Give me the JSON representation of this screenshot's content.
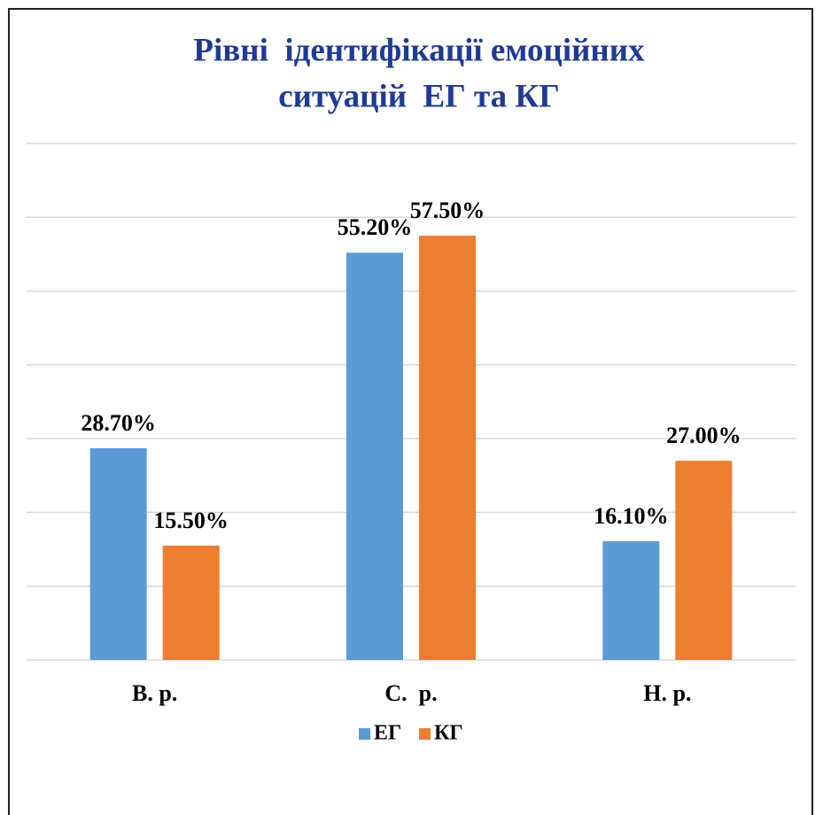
{
  "chart_data": {
    "type": "bar",
    "title": [
      "Рівні  ідентифікації емоційних",
      "ситуацій  ЕГ та КГ"
    ],
    "categories": [
      "В. р.",
      "С.  р.",
      "Н. р."
    ],
    "series": [
      {
        "name": "ЕГ",
        "color": "#5b9bd5",
        "values": [
          28.7,
          55.2,
          16.1
        ],
        "value_labels": [
          "28.70%",
          "55.20%",
          "16.10%"
        ]
      },
      {
        "name": "КГ",
        "color": "#ed7d31",
        "values": [
          15.5,
          57.5,
          27.0
        ],
        "value_labels": [
          "15.50%",
          "57.50%",
          "27.00%"
        ]
      }
    ],
    "ylim": [
      0,
      70
    ],
    "yticks": [
      0,
      10,
      20,
      30,
      40,
      50,
      60,
      70
    ],
    "grid": true,
    "legend": "bottom"
  }
}
